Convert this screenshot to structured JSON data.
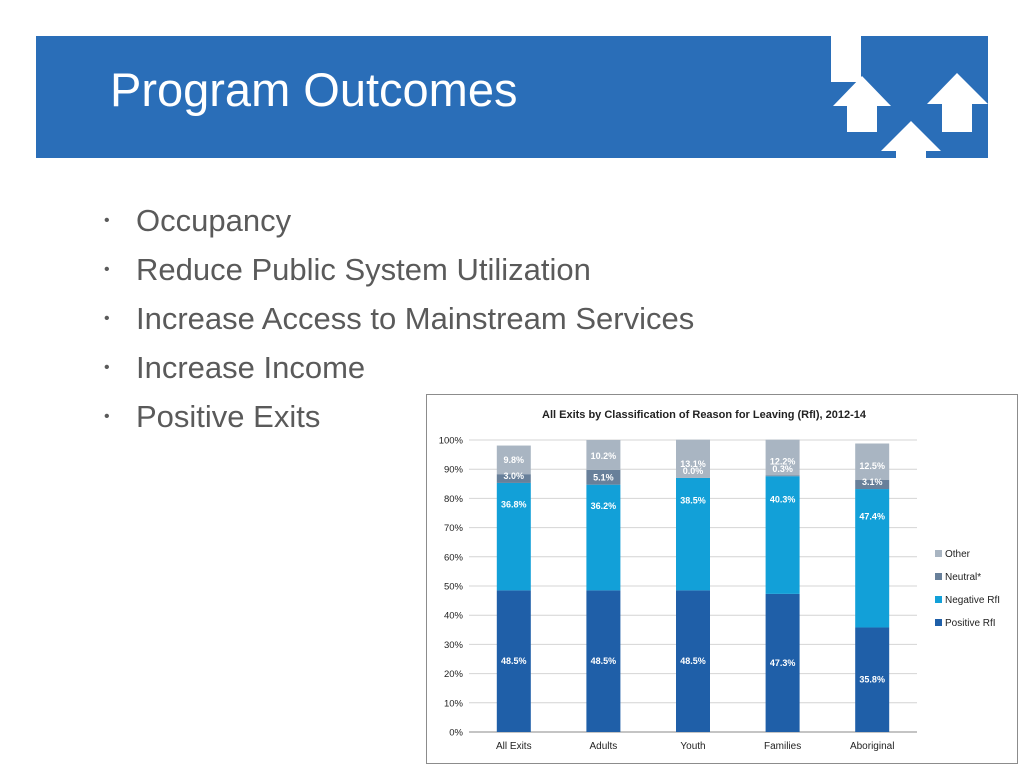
{
  "slide": {
    "title": "Program Outcomes",
    "header_color": "#2a6eb8",
    "header_icons": [
      "up-arrow-icon",
      "up-arrow-icon",
      "up-arrow-icon",
      "up-arrow-icon"
    ],
    "bullets": [
      "Occupancy",
      "Reduce Public System Utilization",
      "Increase Access to Mainstream Services",
      "Increase Income",
      "Positive Exits"
    ]
  },
  "chart_data": {
    "type": "bar",
    "stacked": true,
    "title": "All Exits by Classification of Reason for Leaving (RfI), 2012-14",
    "xlabel": "",
    "ylabel": "",
    "ylim": [
      0,
      100
    ],
    "yticks": [
      "0%",
      "10%",
      "20%",
      "30%",
      "40%",
      "50%",
      "60%",
      "70%",
      "80%",
      "90%",
      "100%"
    ],
    "categories": [
      "All Exits",
      "Adults",
      "Youth",
      "Families",
      "Aboriginal"
    ],
    "series": [
      {
        "name": "Positive RfI",
        "color": "#1f5fa8",
        "values": [
          48.5,
          48.5,
          48.5,
          47.3,
          35.8
        ],
        "labels": [
          "48.5%",
          "48.5%",
          "48.5%",
          "47.3%",
          "35.8%"
        ]
      },
      {
        "name": "Negative RfI",
        "color": "#12a0d8",
        "values": [
          36.8,
          36.2,
          38.5,
          40.3,
          47.4
        ],
        "labels": [
          "36.8%",
          "36.2%",
          "38.5%",
          "40.3%",
          "47.4%"
        ]
      },
      {
        "name": "Neutral*",
        "color": "#68809a",
        "values": [
          3.0,
          5.1,
          0.0,
          0.3,
          3.1
        ],
        "labels": [
          "3.0%",
          "5.1%",
          "0.0%",
          "0.3%",
          "3.1%"
        ]
      },
      {
        "name": "Other",
        "color": "#a9b5c2",
        "values": [
          9.8,
          10.2,
          13.1,
          12.2,
          12.5
        ],
        "labels": [
          "9.8%",
          "10.2%",
          "13.1%",
          "12.2%",
          "12.5%"
        ]
      }
    ],
    "legend": {
      "placement": "right",
      "order": [
        "Other",
        "Neutral*",
        "Negative RfI",
        "Positive RfI"
      ]
    },
    "grid": true
  }
}
